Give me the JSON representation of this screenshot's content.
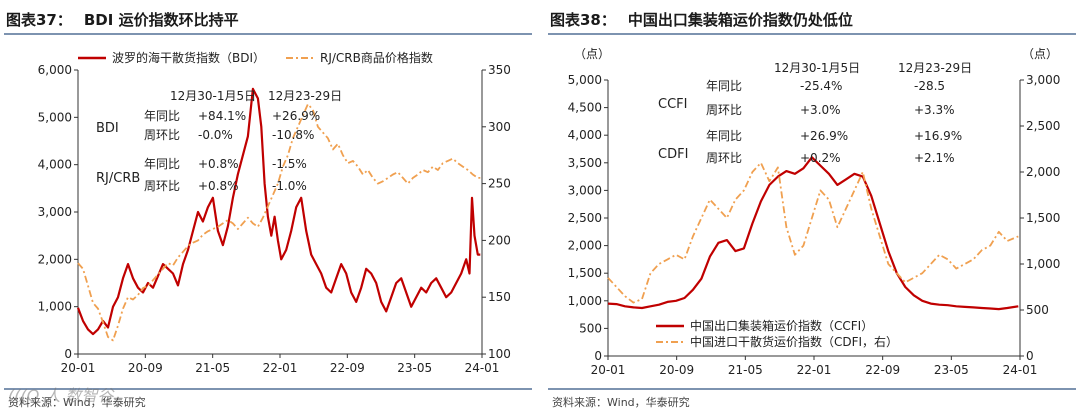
{
  "colors": {
    "red": "#c00000",
    "orange": "#f0a050",
    "axis": "#333333",
    "rule": "#7d93b0"
  },
  "watermark": "(((O 人 数智谷",
  "left": {
    "figure_label": "图表37：",
    "title": "BDI 运价指数环比持平",
    "source": "资料来源：Wind，华泰研究",
    "chart_data": {
      "type": "line",
      "legend": [
        "波罗的海干散货指数（BDI）",
        "RJ/CRB商品价格指数"
      ],
      "x_ticks": [
        "20-01",
        "20-09",
        "21-05",
        "22-01",
        "22-09",
        "23-05",
        "24-01"
      ],
      "x_range": [
        0,
        48.5
      ],
      "y_left": {
        "min": 0,
        "max": 6000,
        "ticks": [
          "0",
          "1,000",
          "2,000",
          "3,000",
          "4,000",
          "5,000",
          "6,000"
        ]
      },
      "y_right": {
        "min": 100,
        "max": 350,
        "ticks": [
          "100",
          "150",
          "200",
          "250",
          "300",
          "350"
        ]
      },
      "series": [
        {
          "name": "BDI",
          "axis": "left",
          "style": "solid",
          "color": "#c00000",
          "x": [
            0,
            0.6,
            1.2,
            1.8,
            2.4,
            3,
            3.6,
            4.2,
            4.8,
            5.4,
            6,
            6.6,
            7.2,
            7.8,
            8.4,
            9,
            9.6,
            10.2,
            10.8,
            11.4,
            12,
            12.6,
            13.2,
            13.8,
            14.4,
            15,
            15.6,
            16.2,
            16.8,
            17.4,
            18,
            18.6,
            19.2,
            19.8,
            20.4,
            21,
            21.6,
            22,
            22.4,
            22.8,
            23.2,
            23.6,
            24,
            24.4,
            25,
            25.6,
            26.2,
            26.8,
            27.4,
            28,
            28.6,
            29.2,
            29.8,
            30.4,
            31,
            31.6,
            32.2,
            32.8,
            33.4,
            34,
            34.6,
            35.2,
            35.8,
            36.4,
            37,
            37.6,
            38.2,
            38.8,
            39.4,
            40,
            40.6,
            41.2,
            41.8,
            42.4,
            43,
            43.6,
            44.2,
            44.8,
            45.4,
            46,
            46.6,
            47,
            47.3,
            47.6,
            48,
            48.3
          ],
          "y": [
            976,
            700,
            520,
            420,
            520,
            700,
            560,
            1000,
            1200,
            1600,
            1900,
            1600,
            1400,
            1300,
            1500,
            1400,
            1650,
            1900,
            1800,
            1700,
            1450,
            1900,
            2200,
            2600,
            3000,
            2800,
            3100,
            3300,
            2600,
            2300,
            2700,
            3300,
            3800,
            4200,
            4600,
            5600,
            5400,
            4800,
            3600,
            2900,
            2500,
            2900,
            2400,
            2000,
            2200,
            2600,
            3100,
            3300,
            2600,
            2100,
            1900,
            1700,
            1400,
            1300,
            1600,
            1900,
            1700,
            1300,
            1100,
            1400,
            1800,
            1700,
            1500,
            1100,
            900,
            1200,
            1500,
            1600,
            1300,
            1000,
            1200,
            1400,
            1300,
            1500,
            1600,
            1400,
            1200,
            1300,
            1500,
            1700,
            2000,
            1700,
            3300,
            2500,
            2100,
            2100
          ]
        },
        {
          "name": "RJ/CRB",
          "axis": "right",
          "style": "dash-dot",
          "color": "#f0a050",
          "x": [
            0,
            0.6,
            1.2,
            1.8,
            2.4,
            3,
            3.6,
            4.2,
            4.8,
            5.4,
            6,
            6.6,
            7.2,
            7.8,
            8.4,
            9,
            9.6,
            10.2,
            10.8,
            11.4,
            12,
            12.6,
            13.2,
            13.8,
            14.4,
            15,
            15.6,
            16.2,
            16.8,
            17.4,
            18,
            18.6,
            19.2,
            19.8,
            20.4,
            21,
            21.6,
            22.2,
            22.8,
            23.4,
            24,
            24.6,
            25.2,
            25.8,
            26.4,
            27,
            27.6,
            28.2,
            28.8,
            29.4,
            30,
            30.6,
            31.2,
            31.8,
            32.4,
            33,
            33.6,
            34.2,
            34.8,
            35.4,
            36,
            36.6,
            37.2,
            37.8,
            38.4,
            39,
            39.6,
            40.2,
            40.8,
            41.4,
            42,
            42.6,
            43.2,
            43.8,
            44.4,
            45,
            45.6,
            46.2,
            46.8,
            47.4,
            48,
            48.3
          ],
          "y": [
            180,
            175,
            160,
            145,
            140,
            128,
            115,
            112,
            125,
            140,
            150,
            148,
            152,
            158,
            160,
            165,
            170,
            175,
            180,
            178,
            185,
            190,
            195,
            198,
            200,
            205,
            208,
            210,
            212,
            215,
            218,
            215,
            210,
            215,
            220,
            215,
            212,
            220,
            230,
            240,
            250,
            265,
            275,
            290,
            300,
            310,
            320,
            315,
            300,
            295,
            290,
            280,
            285,
            275,
            268,
            270,
            265,
            258,
            262,
            255,
            250,
            252,
            255,
            258,
            260,
            255,
            250,
            255,
            258,
            262,
            260,
            265,
            262,
            268,
            270,
            272,
            268,
            265,
            262,
            258,
            255,
            255
          ]
        }
      ],
      "annotations": {
        "headers": [
          "12月30-1月5日",
          "12月23-29日"
        ],
        "rows": [
          {
            "group": "BDI",
            "label": "年同比",
            "v1": "+84.1%",
            "v2": "+26.9%"
          },
          {
            "group": "",
            "label": "周环比",
            "v1": "-0.0%",
            "v2": "-10.8%"
          },
          {
            "group": "RJ/CRB",
            "label": "年同比",
            "v1": "+0.8%",
            "v2": "-1.5%"
          },
          {
            "group": "",
            "label": "周环比",
            "v1": "+0.8%",
            "v2": "-1.0%"
          }
        ]
      }
    }
  },
  "right": {
    "figure_label": "图表38：",
    "title": "中国出口集装箱运价指数仍处低位",
    "source": "资料来源：Wind，华泰研究",
    "chart_data": {
      "type": "line",
      "unit_left": "（点）",
      "unit_right": "（点）",
      "legend": [
        "中国出口集装箱运价指数（CCFI）",
        "中国进口干散货运价指数（CDFI，右）"
      ],
      "x_ticks": [
        "20-01",
        "20-09",
        "21-05",
        "22-01",
        "22-09",
        "23-05",
        "24-01"
      ],
      "x_range": [
        0,
        48.5
      ],
      "y_left": {
        "min": 0,
        "max": 5000,
        "ticks": [
          "0",
          "500",
          "1,000",
          "1,500",
          "2,000",
          "2,500",
          "3,000",
          "3,500",
          "4,000",
          "4,500",
          "5,000"
        ]
      },
      "y_right": {
        "min": 0,
        "max": 3000,
        "ticks": [
          "0",
          "500",
          "1,000",
          "1,500",
          "2,000",
          "2,500",
          "3,000"
        ]
      },
      "series": [
        {
          "name": "CCFI",
          "axis": "left",
          "style": "solid",
          "color": "#c00000",
          "x": [
            0,
            1,
            2,
            3,
            4,
            5,
            6,
            7,
            8,
            9,
            10,
            11,
            12,
            13,
            14,
            15,
            16,
            17,
            18,
            19,
            20,
            21,
            22,
            23,
            24,
            25,
            26,
            27,
            28,
            29,
            30,
            31,
            32,
            33,
            34,
            35,
            36,
            37,
            38,
            39,
            40,
            41,
            42,
            43,
            44,
            45,
            46,
            47,
            48.3
          ],
          "y": [
            950,
            940,
            900,
            880,
            870,
            900,
            930,
            980,
            1000,
            1050,
            1200,
            1400,
            1800,
            2050,
            2100,
            1900,
            1950,
            2400,
            2800,
            3100,
            3250,
            3350,
            3300,
            3400,
            3600,
            3450,
            3300,
            3100,
            3200,
            3300,
            3250,
            2900,
            2400,
            1900,
            1500,
            1250,
            1100,
            1000,
            950,
            930,
            920,
            900,
            890,
            880,
            870,
            860,
            850,
            870,
            900
          ]
        },
        {
          "name": "CDFI",
          "axis": "right",
          "style": "dash-dot",
          "color": "#f0a050",
          "x": [
            0,
            1,
            2,
            3,
            4,
            5,
            6,
            7,
            8,
            9,
            10,
            11,
            12,
            13,
            14,
            15,
            16,
            17,
            18,
            19,
            20,
            21,
            22,
            23,
            24,
            25,
            26,
            27,
            28,
            29,
            30,
            31,
            32,
            33,
            34,
            35,
            36,
            37,
            38,
            39,
            40,
            41,
            42,
            43,
            44,
            45,
            46,
            47,
            48.3
          ],
          "y": [
            850,
            750,
            650,
            580,
            620,
            900,
            1000,
            1050,
            1100,
            1050,
            1300,
            1500,
            1700,
            1600,
            1500,
            1700,
            1800,
            2000,
            2100,
            1900,
            2050,
            1400,
            1100,
            1200,
            1500,
            1800,
            1700,
            1400,
            1600,
            1800,
            2000,
            1600,
            1300,
            1000,
            900,
            800,
            850,
            900,
            1000,
            1100,
            1050,
            950,
            1000,
            1050,
            1150,
            1200,
            1350,
            1250,
            1300
          ]
        }
      ],
      "annotations": {
        "headers": [
          "12月30-1月5日",
          "12月23-29日"
        ],
        "rows": [
          {
            "group": "CCFI",
            "label": "年同比",
            "v1": "-25.4%",
            "v2": "-28.5"
          },
          {
            "group": "",
            "label": "周环比",
            "v1": "+3.0%",
            "v2": "+3.3%"
          },
          {
            "group": "CDFI",
            "label": "年同比",
            "v1": "+26.9%",
            "v2": "+16.9%"
          },
          {
            "group": "",
            "label": "周环比",
            "v1": "+0.2%",
            "v2": "+2.1%"
          }
        ]
      }
    }
  }
}
